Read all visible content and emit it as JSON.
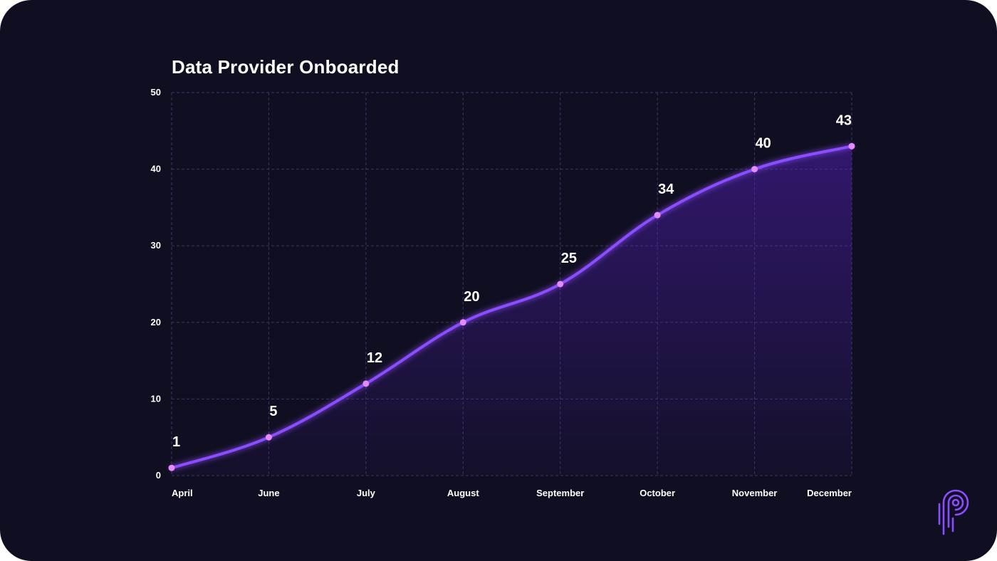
{
  "chart_data": {
    "type": "area",
    "title": "Data Provider Onboarded",
    "xlabel": "",
    "ylabel": "",
    "categories": [
      "April",
      "June",
      "July",
      "August",
      "September",
      "October",
      "November",
      "December"
    ],
    "series": [
      {
        "name": "Data Provider Onboarded",
        "values": [
          1,
          5,
          12,
          20,
          25,
          34,
          40,
          43
        ]
      }
    ],
    "ylim": [
      0,
      50
    ],
    "yticks": [
      0,
      10,
      20,
      30,
      40,
      50
    ],
    "grid": true,
    "data_labels": true,
    "colors": {
      "line": "#8b4dff",
      "point": "#e58bff",
      "fill": "#5a22c8",
      "grid": "#3a3566",
      "background": "#100f21"
    }
  },
  "logo": {
    "icon": "brand-p-logo-icon"
  }
}
